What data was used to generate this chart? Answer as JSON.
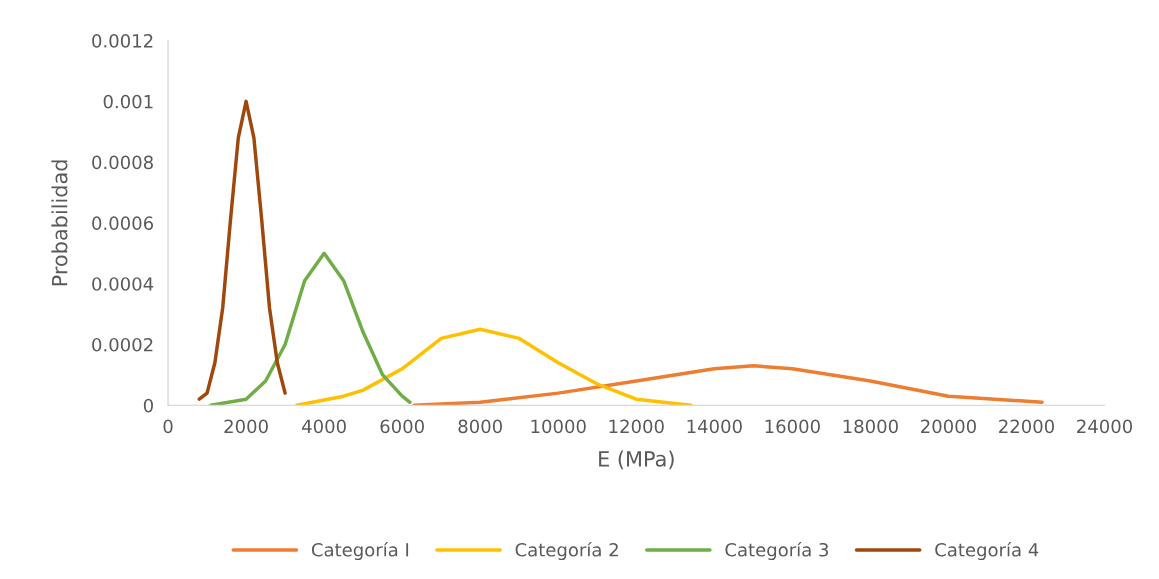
{
  "chart_data": {
    "type": "line",
    "xlabel": "E (MPa)",
    "ylabel": "Probabilidad",
    "xlim": [
      0,
      24000
    ],
    "xticks": [
      0,
      2000,
      4000,
      6000,
      8000,
      10000,
      12000,
      14000,
      16000,
      18000,
      20000,
      22000,
      24000
    ],
    "ylim": [
      0,
      0.0012
    ],
    "yticks": [
      0,
      0.0002,
      0.0004,
      0.0006,
      0.0008,
      0.001,
      0.0012
    ],
    "grid": false,
    "legend": "bottom",
    "marker": "none",
    "line_style": "solid",
    "series": [
      {
        "name": "Categoría I",
        "color": "#ed7d31",
        "x": [
          6300,
          8000,
          10000,
          12000,
          14000,
          15000,
          16000,
          18000,
          20000,
          22400
        ],
        "values": [
          0,
          1e-05,
          4e-05,
          8e-05,
          0.00012,
          0.00013,
          0.00012,
          8e-05,
          3e-05,
          1e-05
        ]
      },
      {
        "name": "Categoría 2",
        "color": "#ffc000",
        "x": [
          3300,
          4500,
          5000,
          6000,
          7000,
          8000,
          9000,
          10000,
          11000,
          12000,
          13400
        ],
        "values": [
          0,
          3e-05,
          5e-05,
          0.00012,
          0.00022,
          0.00025,
          0.00022,
          0.00014,
          7e-05,
          2e-05,
          0
        ]
      },
      {
        "name": "Categoría 3",
        "color": "#70ad47",
        "x": [
          1100,
          2000,
          2500,
          3000,
          3500,
          4000,
          4500,
          5000,
          5500,
          6000,
          6200
        ],
        "values": [
          0,
          2e-05,
          8e-05,
          0.0002,
          0.00041,
          0.0005,
          0.00041,
          0.00024,
          0.0001,
          3e-05,
          1e-05
        ]
      },
      {
        "name": "Categoría 4",
        "color": "#9e480e",
        "x": [
          800,
          1000,
          1200,
          1400,
          1600,
          1800,
          2000,
          2200,
          2400,
          2600,
          2800,
          3000
        ],
        "values": [
          2e-05,
          4e-05,
          0.00014,
          0.00032,
          0.00061,
          0.00088,
          0.001,
          0.00088,
          0.00061,
          0.00032,
          0.00014,
          4e-05
        ]
      }
    ]
  }
}
